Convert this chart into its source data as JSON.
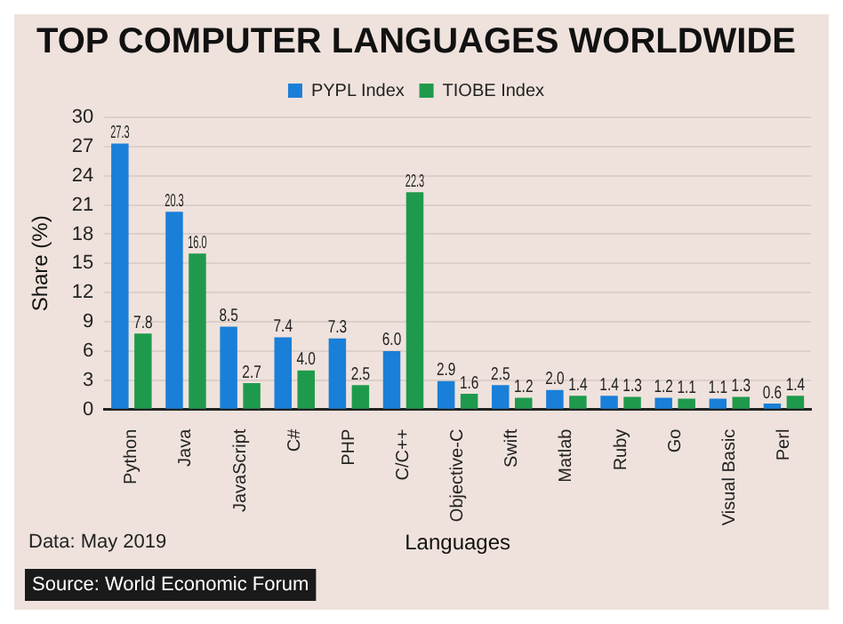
{
  "chart_data": {
    "type": "bar",
    "title": "TOP COMPUTER LANGUAGES WORLDWIDE",
    "xlabel": "Languages",
    "ylabel": "Share (%)",
    "categories": [
      "Python",
      "Java",
      "JavaScript",
      "C#",
      "PHP",
      "C/C++",
      "Objective-C",
      "Swift",
      "Matlab",
      "Ruby",
      "Go",
      "Visual Basic",
      "Perl"
    ],
    "series": [
      {
        "name": "PYPL Index",
        "color": "#1a7fd8",
        "values": [
          27.3,
          20.3,
          8.5,
          7.4,
          7.3,
          6.0,
          2.9,
          2.5,
          2.0,
          1.4,
          1.2,
          1.1,
          0.6
        ],
        "value_labels": [
          "27.3",
          "20.3",
          "8.5",
          "7.4",
          "7.3",
          "6.0",
          "2.9",
          "2.5",
          "2.0",
          "1.4",
          "1.2",
          "1.1",
          "0.6"
        ]
      },
      {
        "name": "TIOBE Index",
        "color": "#1f9a4c",
        "values": [
          7.8,
          16.0,
          2.7,
          4.0,
          2.5,
          22.3,
          1.6,
          1.2,
          1.4,
          1.3,
          1.1,
          1.3,
          1.4
        ],
        "value_labels": [
          "7.8",
          "16.0",
          "2.7",
          "4.0",
          "2.5",
          "22.3",
          "1.6",
          "1.2",
          "1.4",
          "1.3",
          "1.1",
          "1.3",
          "1.4"
        ]
      }
    ],
    "ylim": [
      0,
      30
    ],
    "yticks": [
      0,
      3,
      6,
      9,
      12,
      15,
      18,
      21,
      24,
      27,
      30
    ],
    "grid": "y",
    "legend": "top",
    "annotations": [
      "Data: May 2019",
      "Source: World Economic Forum"
    ]
  }
}
